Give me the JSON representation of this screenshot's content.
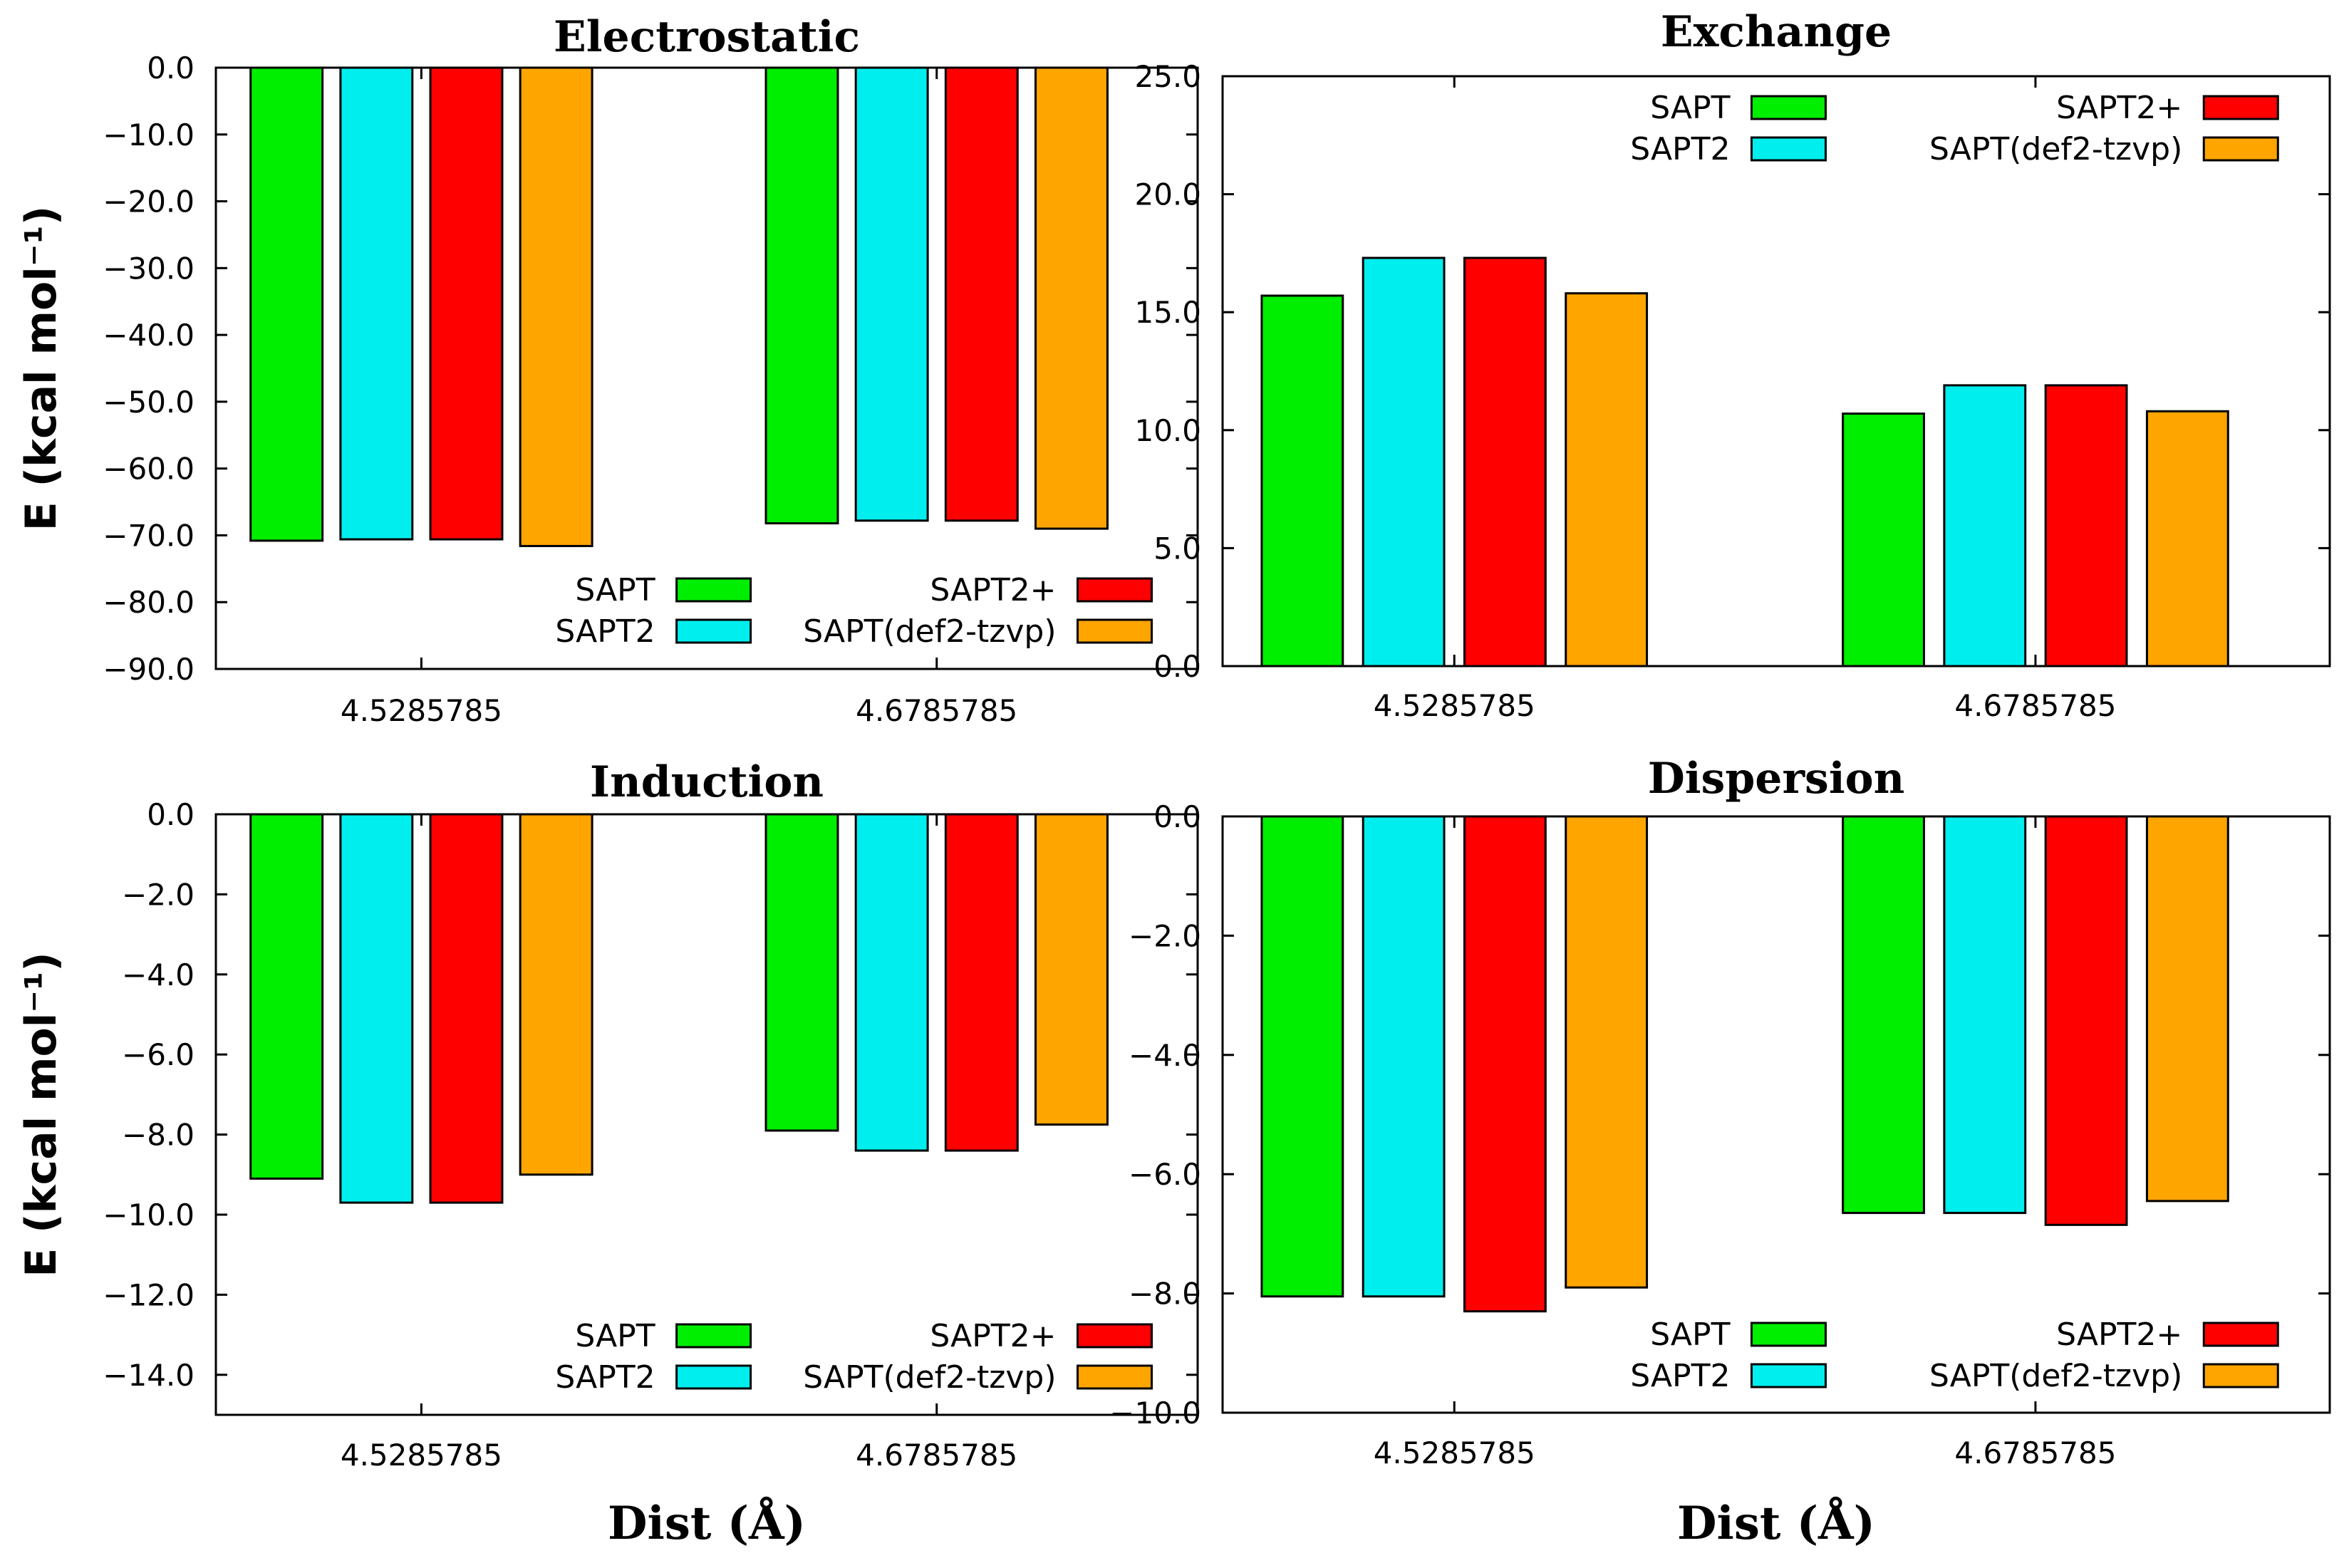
{
  "chart_data": [
    {
      "type": "bar",
      "title": "Electrostatic",
      "categories": [
        "4.5285785",
        "4.6785785"
      ],
      "series": [
        {
          "name": "SAPT",
          "color": "#00ee00",
          "values": [
            -70.8,
            -68.2
          ]
        },
        {
          "name": "SAPT2",
          "color": "#00eeee",
          "values": [
            -70.6,
            -67.8
          ]
        },
        {
          "name": "SAPT2+",
          "color": "#ff0000",
          "values": [
            -70.6,
            -67.8
          ]
        },
        {
          "name": "SAPT(def2-tzvp)",
          "color": "#ffa500",
          "values": [
            -71.6,
            -69.0
          ]
        }
      ],
      "ylim": [
        -90,
        0
      ],
      "yticks": [
        "0.0",
        "−10.0",
        "−20.0",
        "−30.0",
        "−40.0",
        "−50.0",
        "−60.0",
        "−70.0",
        "−80.0",
        "−90.0"
      ],
      "xlabel": "",
      "ylabel": "E (kcal mol⁻¹)",
      "legend_position": "bottom"
    },
    {
      "type": "bar",
      "title": "Exchange",
      "categories": [
        "4.5285785",
        "4.6785785"
      ],
      "series": [
        {
          "name": "SAPT",
          "color": "#00ee00",
          "values": [
            15.7,
            10.7
          ]
        },
        {
          "name": "SAPT2",
          "color": "#00eeee",
          "values": [
            17.3,
            11.9
          ]
        },
        {
          "name": "SAPT2+",
          "color": "#ff0000",
          "values": [
            17.3,
            11.9
          ]
        },
        {
          "name": "SAPT(def2-tzvp)",
          "color": "#ffa500",
          "values": [
            15.8,
            10.8
          ]
        }
      ],
      "ylim": [
        0,
        25
      ],
      "yticks": [
        "0.0",
        "5.0",
        "10.0",
        "15.0",
        "20.0",
        "25.0"
      ],
      "xlabel": "",
      "ylabel": "",
      "legend_position": "top"
    },
    {
      "type": "bar",
      "title": "Induction",
      "categories": [
        "4.5285785",
        "4.6785785"
      ],
      "series": [
        {
          "name": "SAPT",
          "color": "#00ee00",
          "values": [
            -9.1,
            -7.9
          ]
        },
        {
          "name": "SAPT2",
          "color": "#00eeee",
          "values": [
            -9.7,
            -8.4
          ]
        },
        {
          "name": "SAPT2+",
          "color": "#ff0000",
          "values": [
            -9.7,
            -8.4
          ]
        },
        {
          "name": "SAPT(def2-tzvp)",
          "color": "#ffa500",
          "values": [
            -9.0,
            -7.75
          ]
        }
      ],
      "ylim": [
        -15,
        0
      ],
      "yticks": [
        "0.0",
        "−2.0",
        "−4.0",
        "−6.0",
        "−8.0",
        "−10.0",
        "−12.0",
        "−14.0"
      ],
      "xlabel": "Dist (Å)",
      "ylabel": "E (kcal mol⁻¹)",
      "legend_position": "bottom"
    },
    {
      "type": "bar",
      "title": "Dispersion",
      "categories": [
        "4.5285785",
        "4.6785785"
      ],
      "series": [
        {
          "name": "SAPT",
          "color": "#00ee00",
          "values": [
            -8.05,
            -6.65
          ]
        },
        {
          "name": "SAPT2",
          "color": "#00eeee",
          "values": [
            -8.05,
            -6.65
          ]
        },
        {
          "name": "SAPT2+",
          "color": "#ff0000",
          "values": [
            -8.3,
            -6.85
          ]
        },
        {
          "name": "SAPT(def2-tzvp)",
          "color": "#ffa500",
          "values": [
            -7.9,
            -6.45
          ]
        }
      ],
      "ylim": [
        -10,
        0
      ],
      "yticks": [
        "0.0",
        "−2.0",
        "−4.0",
        "−6.0",
        "−8.0",
        "−10.0"
      ],
      "xlabel": "Dist (Å)",
      "ylabel": "",
      "legend_position": "bottom"
    }
  ]
}
